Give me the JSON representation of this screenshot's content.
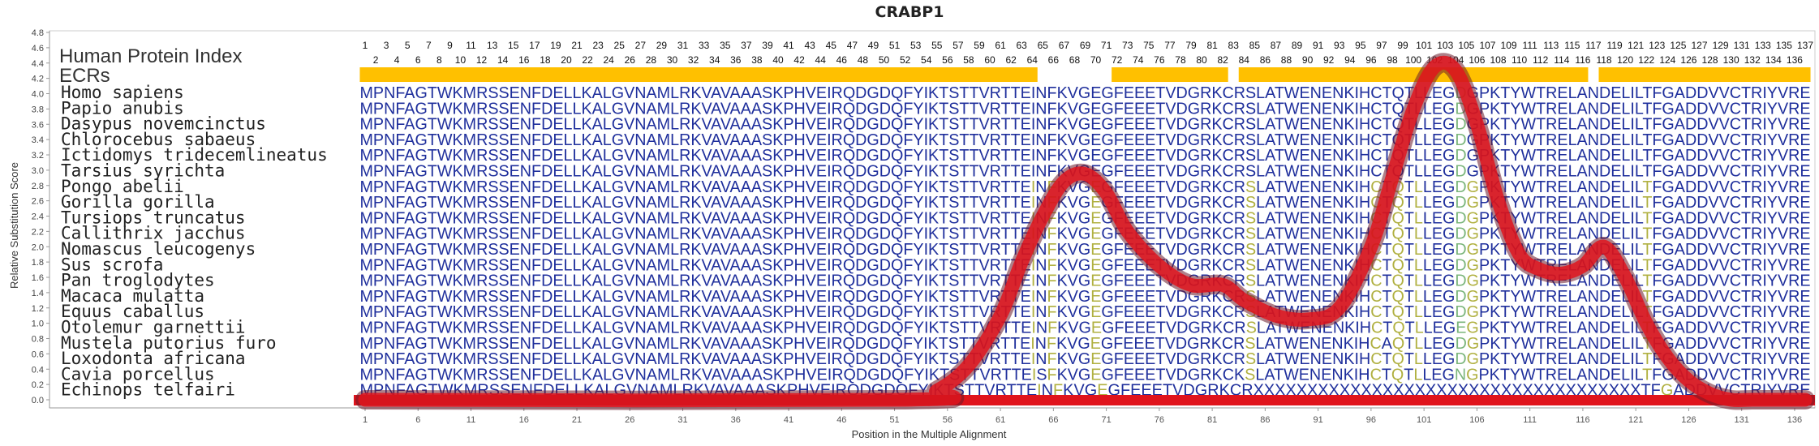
{
  "chart_data": {
    "type": "line",
    "title": "CRABP1",
    "xlabel": "Position in the Multiple Alignment",
    "ylabel": "Relative Substitution Score",
    "ylim": [
      0.0,
      4.8
    ],
    "xlim": [
      1,
      137
    ],
    "yticks": [
      "0.0",
      "0.2",
      "0.4",
      "0.6",
      "0.8",
      "1.0",
      "1.2",
      "1.4",
      "1.6",
      "1.8",
      "2.0",
      "2.2",
      "2.4",
      "2.6",
      "2.8",
      "3.0",
      "3.2",
      "3.4",
      "3.6",
      "3.8",
      "4.0",
      "4.2",
      "4.4",
      "4.6",
      "4.8"
    ],
    "xticks": [
      "1",
      "6",
      "11",
      "16",
      "21",
      "26",
      "31",
      "36",
      "41",
      "46",
      "51",
      "56",
      "61",
      "66",
      "71",
      "76",
      "81",
      "86",
      "91",
      "96",
      "101",
      "106",
      "111",
      "116",
      "121",
      "126",
      "131",
      "136"
    ],
    "hpi_label": "Human Protein Index",
    "ecr_label": "ECRs",
    "hpi_odd": [
      "1",
      "3",
      "5",
      "7",
      "9",
      "11",
      "13",
      "15",
      "17",
      "19",
      "21",
      "23",
      "25",
      "27",
      "29",
      "31",
      "33",
      "35",
      "37",
      "39",
      "41",
      "43",
      "45",
      "47",
      "49",
      "51",
      "53",
      "55",
      "57",
      "59",
      "61",
      "63",
      "65",
      "67",
      "69",
      "71",
      "73",
      "75",
      "77",
      "79",
      "81",
      "83",
      "85",
      "87",
      "89",
      "91",
      "93",
      "95",
      "97",
      "99",
      "101",
      "103",
      "105",
      "107",
      "109",
      "111",
      "113",
      "115",
      "117",
      "119",
      "121",
      "123",
      "125",
      "127",
      "129",
      "131",
      "133",
      "135",
      "137"
    ],
    "hpi_even": [
      "2",
      "4",
      "6",
      "8",
      "10",
      "12",
      "14",
      "16",
      "18",
      "20",
      "22",
      "24",
      "26",
      "28",
      "30",
      "32",
      "34",
      "36",
      "38",
      "40",
      "42",
      "44",
      "46",
      "48",
      "50",
      "52",
      "54",
      "56",
      "58",
      "60",
      "62",
      "64",
      "66",
      "68",
      "70",
      "72",
      "74",
      "76",
      "78",
      "80",
      "82",
      "84",
      "86",
      "88",
      "90",
      "92",
      "94",
      "96",
      "98",
      "100",
      "102",
      "104",
      "106",
      "108",
      "110",
      "112",
      "114",
      "116",
      "118",
      "120",
      "122",
      "124",
      "126",
      "128",
      "130",
      "132",
      "134",
      "136"
    ],
    "ecr_segments": [
      [
        1,
        64
      ],
      [
        72,
        82
      ],
      [
        84,
        116
      ],
      [
        118,
        137
      ]
    ],
    "species": [
      "Homo sapiens",
      "Papio anubis",
      "Dasypus novemcinctus",
      "Chlorocebus sabaeus",
      "Ictidomys tridecemlineatus",
      "Tarsius syrichta",
      "Pongo abelii",
      "Gorilla gorilla",
      "Tursiops truncatus",
      "Callithrix jacchus",
      "Nomascus leucogenys",
      "Sus scrofa",
      "Pan troglodytes",
      "Macaca mulatta",
      "Equus caballus",
      "Otolemur garnettii",
      "Mustela putorius furo",
      "Loxodonta africana",
      "Cavia porcellus",
      "Echinops telfairi"
    ],
    "sequences": [
      "MPNFAGTWKMRSSENFDELLKALGVNAMLRKVAVAAASKPHVEIRQDGDQFYIKTSTTVRTTEINFKVGEGFEEETVDGRKCRSLATWENENKIHCTQTLLEGDGPKTYWTRELANDELILTFGADDVVCTRIYVRE",
      "MPNFAGTWKMRSSENFDELLKALGVNAMLRKVAVAAASKPHVEIRQDGDQFYIKTSTTVRTTEINFKVGEGFEEETVDGRKCRSLATWENENKIHCTQTLLEGDGPKTYWTRELANDELILTFGADDVVCTRIYVRE",
      "MPNFAGTWKMRSSENFDELLKALGVNAMLRKVAVAAASKPHVEIRQDGDQFYIKTSTTVRTTEINFKVGEGFEEETVDGRKCRSLATWENENKIHCTQTLLEGDGPKTYWTRELANDELILTFGADDVVCTRIYVRE",
      "MPNFAGTWKMRSSENFDELLKALGVNAMLRKVAVAAASKPHVEIRQDGDQFYIKTSTTVRTTEINFKVGEGFEEETVDGRKCRSLATWENENKIHCTQTLLEGDGPKTYWTRELANDELILTFGADDVVCTRIYVRE",
      "MPNFAGTWKMRSSENFDELLKALGVNAMLRKVAVAAASKPHVEIRQDGDQFYIKTSTTVRTTEINFKVGEGFEEETVDGRKCRSLATWENENKIHCTQTLLEGDGPKTYWTRELANDELILTFGADDVVCTRIYVRE",
      "MPNFAGTWKMRSSENFDELLKALGVNAMLRKVAVAAASKPHVEIRQDGDQFYIKTSTTVRTTEINFKVGEGFEEETVDGRKCRSLATWENENKIHCTQTLLEGDGPKTYWTRELANDELILTFGADDVVCTRIYVRE",
      "MPNFAGTWKMRSSENFDELLKALGVNAMLRKVAVAAASKPHVEIRQDGDQFYIKTSTTVRTTEINFKVGEGFEEETVDGRKCRSLATWENENKIHCTQTLLEGDGPKTYWTRELANDELILTFGADDVVCTRIYVRE",
      "MPNFAGTWKMRSSENFDELLKALGVNAMLRKVAVAAASKPHVEIRQDGDQFYIKTSTTVRTTEINFKVGEGFEEETVDGRKCRSLATWENENKIHCTQTLLEGDGPKTYWTRELANDELILTFGADDVVCTRIYVRE",
      "MPNFAGTWKMRSSENFDELLKALGVNAMLRKVAVAAASKPHVEIRQDGDQFYIKTSTTVRTTEINFKVGEGFEEETVDGRKCRSLATWENENKIHCTQTLLEGDGPKTYWTRELANDELILTFGADDVVCTRIYVRE",
      "MPNFAGTWKMRSSENFDELLKALGVNAMLRKVAVAAASKPHVEIRQDGDQFYIKTSTTVRTTEINFKVGEGFEEETVDGRKCRSLATWENENKIHCTQTLLEGDGPKTYWTRELANDELILTFGADDVVCTRIYVRE",
      "MPNFAGTWKMRSSENFDELLKALGVNAMLRKVAVAAASKPHVEIRQDGDQFYIKTSTTVRTTEINFKVGEGFEEETVDGRKCRSLATWENENKIHCTQTLLEGDGPKTYWTRELANDELILTFGADDVVCTRIYVRE",
      "MPNFAGTWKMRSSENFDELLKALGVNAMLRKVAVAAASKPHVEIRQDGDQFYIKTSTTVRTTEINFKVGEGFEEETVDGRKCRSLATWENENKIHCTQTLLEGDGPKTYWTRELANDELILTFGADDVVCTRIYVRE",
      "MPNFAGTWKMRSSENFDELLKALGVNAMLRKVAVAAASKPHVEIRQDGDQFYIKTSTTVRTTEINFKVGEGFEEETVDGRKCRSLATWENENKIHCTQTLLEGDGPKTYWTRELANDELILTFGADDVVCTRIYVRE",
      "MPNFAGTWKMRSSENFDELLKALGVNAMLRKVAVAAASKPHVEIRQDGDQFYIKTSTTVRTTEINFKVGEGFEEETVDGRKCRSLATWENENKIHCTQTLLEGDGPKTYWTRELANDELILTFGADDVVCTRIYVRE",
      "MPNFAGTWKMRSSENFDELLKALGVNAMLRKVAVAAASKPHVEIRQDGDQFYIKTSTTVRTTEINFKVGEGFEEETVDGRKCRSLATWENENKIHCTQTLLEGDGPKTYWTRELANDELILTFGADDVVCTRIYVRE",
      "MPNFAGTWKMRSSENFDELLKALGVNAMLRKVAVAAASKPHVEIRQDGDQFYIKTSTTVRTTEINFKVGEGFEEETVDGRKCRSLATWENENKIHCTQTLLEGEGPKTYWTRELANDELILTFGADDVVCTRIYVRE",
      "MPNFAGTWKMRSSENFDELLKALGVNAMLRKVAVAAASKPHVEIRQDGDQFYIKTSTTVRTTEINFKVGEGFEEETVDGRKCRSLATWENENKIHCAQTLLEGDGPKTYWTRELANDELILTFGADDVVCTRIYVRE",
      "MPNFAGTWKMRSSENFDELLKALGVNAMLRKVAVAAASKPHVEIRQDGDQFYIKTSTTVRTTEINFKVGEGFEEETVDGRKCRSLATWENENKIHCTQTLLEGDGPKTYWTRELANDELILTFGADDVVCTRIYVRE",
      "MPNFAGTWKMRSSENFDELLKALGVNAMLRKVAVAAASKPHVEIRQDGDQFYIKTSTTVRTTEISFKVGEGFEEETVDGRKCKSLATWENENKIHCTQTLLEGNGPKTYWTRELANDELILTFGADDVVCTRIYVRE",
      "MPNFAGTWKMRSSENFDELLKALGVNAMLRKVAVAAASKPHVEIRQDGDQFYIKTSTTVRTTEINFKVGEGFEEETVDGRKCRXXXXXXXXXXXXXXXXXXXXXXXXXXXXXXXXXXXXTFGADDVVCTRIYVRE"
    ],
    "series": [
      {
        "x": [
          1,
          52,
          55,
          58,
          61,
          63,
          65,
          67,
          69,
          71,
          73,
          76,
          79,
          82,
          84,
          87,
          90,
          93,
          96,
          98,
          100,
          102,
          104,
          106,
          108,
          110,
          112,
          114,
          116,
          118,
          120,
          122,
          124,
          126,
          128,
          130,
          132,
          134,
          137
        ],
        "values": [
          0.0,
          0.0,
          0.12,
          0.45,
          1.1,
          1.8,
          2.4,
          2.85,
          2.95,
          2.7,
          2.2,
          1.75,
          1.5,
          1.5,
          1.3,
          1.1,
          1.05,
          1.2,
          2.0,
          2.9,
          3.8,
          4.35,
          4.3,
          3.6,
          2.6,
          1.9,
          1.7,
          1.65,
          1.75,
          2.0,
          1.6,
          1.0,
          0.55,
          0.25,
          0.08,
          0.0,
          0.0,
          0.0,
          0.0
        ]
      }
    ]
  },
  "colors": {
    "curve": "#e0141c",
    "curve_shadow": "#6a1a2a",
    "ecr": "#ffc000",
    "residue": "#1f2f9c",
    "residue_diff": "#7ab57a",
    "residue_mid": "#b0b040"
  }
}
